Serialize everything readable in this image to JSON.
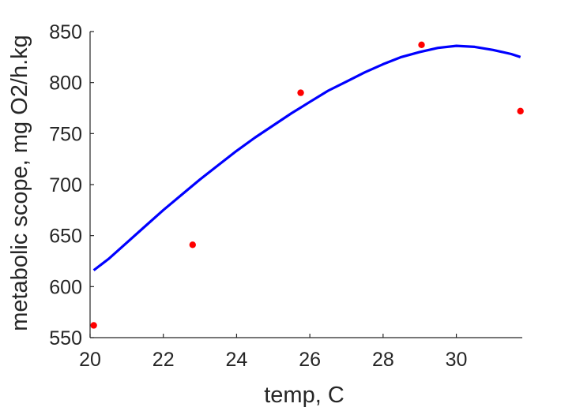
{
  "chart_data": {
    "type": "scatter",
    "title": "",
    "xlabel": "temp, C",
    "ylabel": "metabolic scope, mg O2/h.kg",
    "xlim": [
      20,
      31.8
    ],
    "ylim": [
      550,
      850
    ],
    "xticks": [
      20,
      22,
      24,
      26,
      28,
      30
    ],
    "yticks": [
      550,
      600,
      650,
      700,
      750,
      800,
      850
    ],
    "grid": false,
    "colors": {
      "points": "#ff0000",
      "fit": "#0000ff",
      "axis": "#262626"
    },
    "series": [
      {
        "kind": "points",
        "x": [
          20.1,
          22.8,
          25.75,
          29.05,
          31.75
        ],
        "y": [
          562,
          641,
          790,
          837,
          772
        ]
      },
      {
        "kind": "fit-line",
        "x": [
          20.1,
          20.5,
          21.0,
          21.5,
          22.0,
          22.5,
          23.0,
          23.5,
          24.0,
          24.5,
          25.0,
          25.5,
          26.0,
          26.5,
          27.0,
          27.5,
          28.0,
          28.5,
          29.0,
          29.5,
          30.0,
          30.5,
          31.0,
          31.5,
          31.75
        ],
        "y": [
          616,
          627,
          643,
          659,
          675,
          690,
          705,
          719,
          733,
          746,
          758,
          770,
          781,
          792,
          801,
          810,
          818,
          825,
          830,
          834,
          836,
          835,
          832,
          828,
          825
        ]
      }
    ]
  }
}
